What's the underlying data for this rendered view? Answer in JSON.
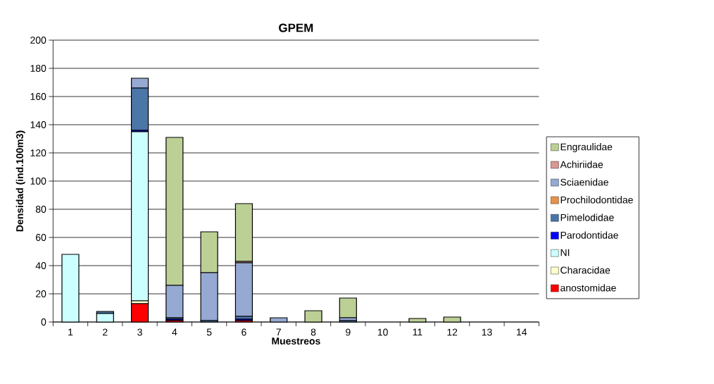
{
  "chart_data": {
    "type": "bar",
    "stacked": true,
    "title": "GPEM",
    "xlabel": "Muestreos",
    "ylabel": "Densidad (ind.100m3)",
    "categories": [
      "1",
      "2",
      "3",
      "4",
      "5",
      "6",
      "7",
      "8",
      "9",
      "10",
      "11",
      "12",
      "13",
      "14"
    ],
    "ylim": [
      0,
      200
    ],
    "yticks": [
      0,
      20,
      40,
      60,
      80,
      100,
      120,
      140,
      160,
      180,
      200
    ],
    "grid": "y",
    "legend": "right",
    "series": [
      {
        "name": "anostomidae",
        "color": "#ff0000",
        "values": [
          null,
          null,
          13,
          1,
          null,
          1,
          null,
          null,
          null,
          null,
          null,
          null,
          null,
          null
        ]
      },
      {
        "name": "Characidae",
        "color": "#ffffcc",
        "values": [
          null,
          null,
          2,
          null,
          null,
          null,
          null,
          null,
          null,
          null,
          null,
          null,
          null,
          null
        ]
      },
      {
        "name": "NI",
        "color": "#ccffff",
        "values": [
          48,
          6,
          120,
          null,
          null,
          null,
          null,
          null,
          null,
          null,
          null,
          null,
          null,
          null
        ]
      },
      {
        "name": "Parodontidae",
        "color": "#0000ff",
        "values": [
          null,
          null,
          1,
          1,
          null,
          1,
          null,
          null,
          null,
          null,
          null,
          null,
          null,
          null
        ]
      },
      {
        "name": "Pimelodidae",
        "color": "#4a76a8",
        "values": [
          null,
          1.5,
          30,
          1,
          1,
          2,
          null,
          null,
          1,
          null,
          null,
          null,
          null,
          null
        ]
      },
      {
        "name": "Prochilodontidae",
        "color": "#e6944a",
        "values": [
          null,
          null,
          null,
          null,
          null,
          null,
          null,
          null,
          null,
          null,
          null,
          null,
          null,
          null
        ]
      },
      {
        "name": "Sciaenidae",
        "color": "#95a9d2",
        "values": [
          null,
          null,
          7,
          23,
          34,
          38,
          3,
          null,
          2,
          null,
          null,
          null,
          null,
          null
        ]
      },
      {
        "name": "Achiriidae",
        "color": "#d99694",
        "values": [
          null,
          null,
          null,
          null,
          null,
          1,
          null,
          null,
          null,
          null,
          null,
          null,
          null,
          null
        ]
      },
      {
        "name": "Engraulidae",
        "color": "#bcd096",
        "values": [
          null,
          null,
          null,
          105,
          29,
          41,
          null,
          8,
          14,
          null,
          2.5,
          3.5,
          null,
          null
        ]
      }
    ]
  }
}
